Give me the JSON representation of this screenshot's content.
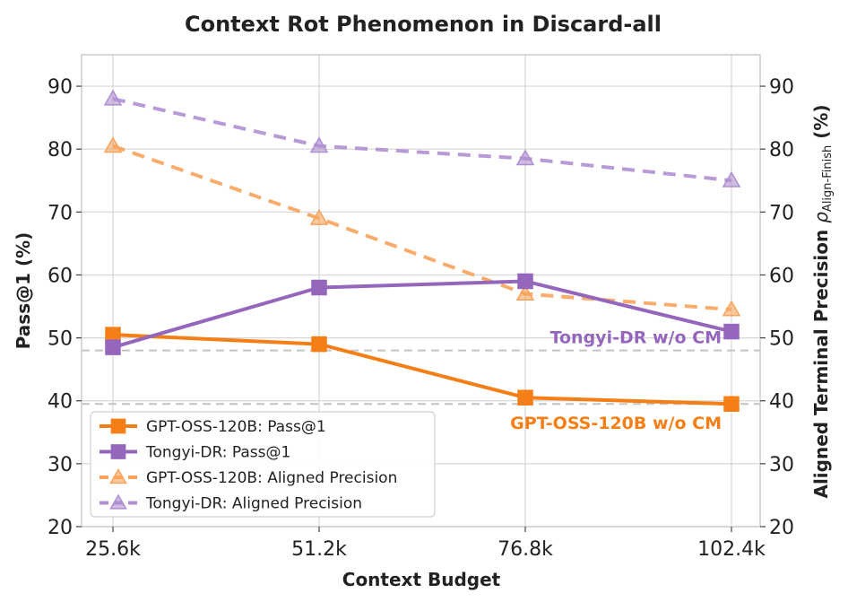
{
  "chart_data": {
    "type": "line",
    "title": "Context Rot Phenomenon in Discard-all",
    "xlabel": "Context Budget",
    "ylabel_left": "Pass@1 (%)",
    "ylabel_right_main": "Aligned Terminal Precision ",
    "ylabel_right_rho": "ρ",
    "ylabel_right_sub": "Align-Finish",
    "ylabel_right_unit": " (%)",
    "categories": [
      "25.6k",
      "51.2k",
      "76.8k",
      "102.4k"
    ],
    "ylim": [
      20,
      95
    ],
    "yticks": [
      20,
      30,
      40,
      50,
      60,
      70,
      80,
      90
    ],
    "grid": true,
    "legend_position": "lower-left",
    "series": [
      {
        "name": "GPT-OSS-120B: Pass@1",
        "axis": "left",
        "values": [
          50.5,
          49.0,
          40.5,
          39.5
        ],
        "color": "#f57f17",
        "style": "solid",
        "marker": "square"
      },
      {
        "name": "Tongyi-DR: Pass@1",
        "axis": "left",
        "values": [
          48.5,
          58.0,
          59.0,
          51.0
        ],
        "color": "#9467bd",
        "style": "solid",
        "marker": "square"
      },
      {
        "name": "GPT-OSS-120B: Aligned Precision",
        "axis": "right",
        "values": [
          80.5,
          69.0,
          57.0,
          54.5
        ],
        "color": "#f9a35c",
        "style": "dashed",
        "marker": "triangle"
      },
      {
        "name": "Tongyi-DR: Aligned Precision",
        "axis": "right",
        "values": [
          88.0,
          80.5,
          78.5,
          75.0
        ],
        "color": "#b08fd1",
        "style": "dashed",
        "marker": "triangle"
      }
    ],
    "baselines": [
      {
        "label": "Tongyi-DR w/o CM",
        "value": 48.0,
        "color": "#9467bd"
      },
      {
        "label": "GPT-OSS-120B w/o CM",
        "value": 39.5,
        "color": "#f57f17"
      }
    ]
  }
}
